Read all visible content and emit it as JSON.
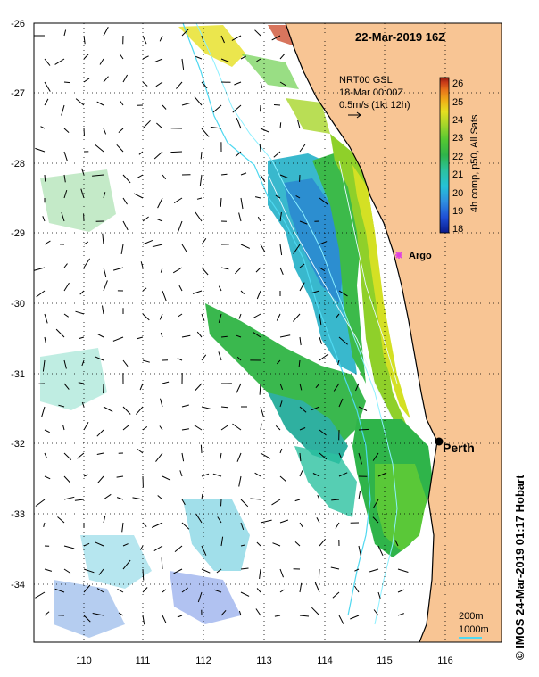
{
  "map": {
    "title": "22-Mar-2019 16Z",
    "product_lines": [
      "NRT00 GSL",
      "18-Mar 00:00Z",
      "0.5m/s (1kt 12h)"
    ],
    "colorbar": {
      "label": "4h comp, p50, All Sats",
      "min": 18,
      "max": 26.5,
      "ticks": [
        "18",
        "19",
        "20",
        "21",
        "22",
        "23",
        "24",
        "25",
        "26"
      ],
      "colors": [
        "#0a1a8c",
        "#1f4fd6",
        "#2f8fe0",
        "#25c2d8",
        "#2cc2a0",
        "#2fb44a",
        "#55c832",
        "#a8d62a",
        "#e6e020",
        "#f0b018",
        "#e8741a",
        "#c83a18",
        "#8c1a10"
      ]
    },
    "lat_labels": [
      "-26",
      "-27",
      "-28",
      "-29",
      "-30",
      "-31",
      "-32",
      "-33",
      "-34"
    ],
    "lon_labels": [
      "110",
      "111",
      "112",
      "113",
      "114",
      "115",
      "116"
    ],
    "places": {
      "city": "Perth",
      "float": "Argo"
    },
    "scale": {
      "line1": "200m",
      "line2": "1000m"
    },
    "credit": "© IMOS 24-Mar-2019 01:17 Hobart",
    "land_color": "#f8c594"
  }
}
